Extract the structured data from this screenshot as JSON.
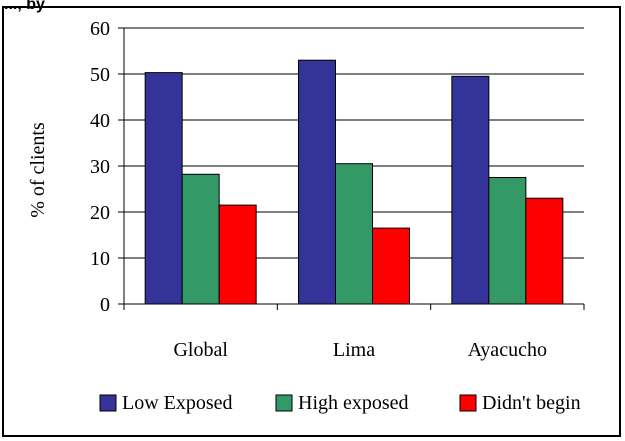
{
  "top_caption": "..., by",
  "colors": {
    "low_exposed": "#333399",
    "high_exposed": "#339966",
    "didnt_begin": "#ff0000"
  },
  "chart_data": {
    "type": "bar",
    "title": "",
    "xlabel": "",
    "ylabel": "% of clients",
    "categories": [
      "Global",
      "Lima",
      "Ayacucho"
    ],
    "ylim": [
      0,
      60
    ],
    "yticks": [
      0,
      10,
      20,
      30,
      40,
      50,
      60
    ],
    "grid": true,
    "legend_position": "bottom",
    "series": [
      {
        "name": "Low Exposed",
        "values": [
          50.3,
          53.0,
          49.5
        ]
      },
      {
        "name": "High exposed",
        "values": [
          28.2,
          30.5,
          27.5
        ]
      },
      {
        "name": "Didn't begin",
        "values": [
          21.5,
          16.5,
          23.0
        ]
      }
    ]
  }
}
